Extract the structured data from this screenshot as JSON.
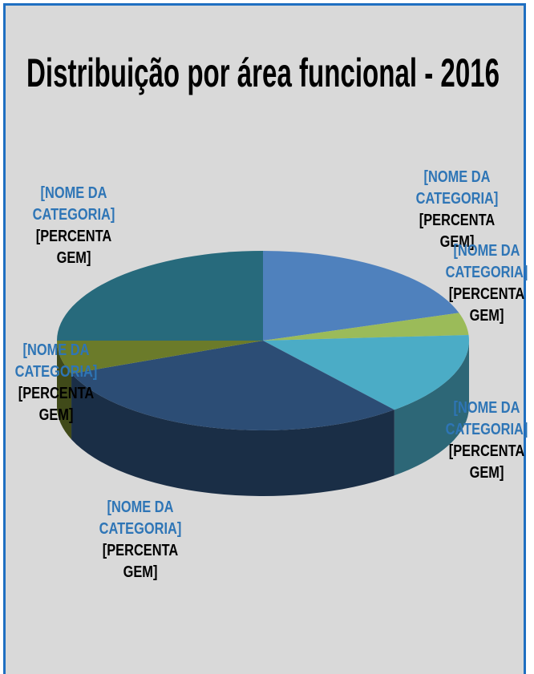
{
  "chart_data": {
    "type": "pie",
    "title": "Distribuição por área funcional  - 2016",
    "categories": [
      "[NOME DA CATEGORIA]",
      "[NOME DA CATEGORIA]",
      "[NOME DA CATEGORIA]",
      "[NOME DA CATEGORIA]",
      "[NOME DA CATEGORIA]",
      "[NOME DA CATEGORIA]"
    ],
    "values": [
      20,
      4,
      15,
      30,
      6,
      25
    ],
    "value_labels": [
      "[PERCENTAGEM]",
      "[PERCENTAGEM]",
      "[PERCENTAGEM]",
      "[PERCENTAGEM]",
      "[PERCENTAGEM]",
      "[PERCENTAGEM]"
    ],
    "colors": [
      "#4f81bd",
      "#9bbb59",
      "#4bacc6",
      "#2c4d75",
      "#6b7b2a",
      "#276a7c"
    ]
  }
}
